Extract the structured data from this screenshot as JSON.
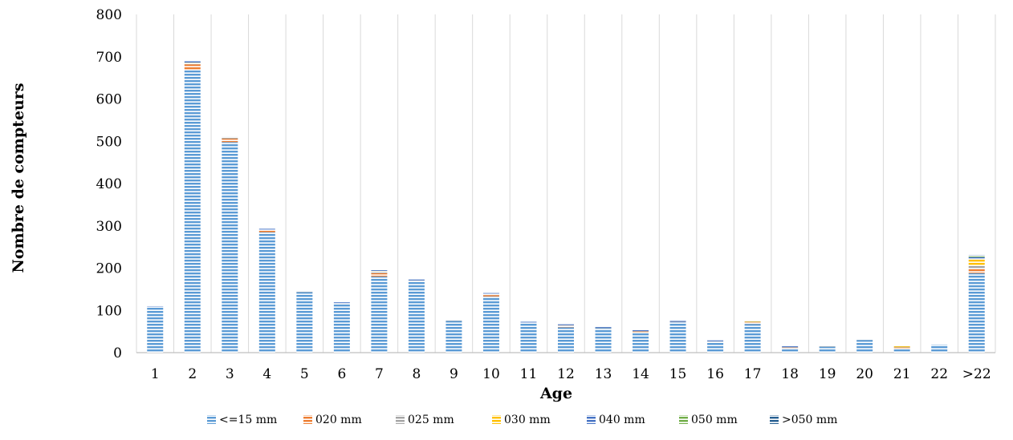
{
  "chart_data": {
    "type": "bar",
    "stacked": true,
    "title": "",
    "xlabel": "Age",
    "ylabel": "Nombre de compteurs",
    "ylim": [
      0,
      800
    ],
    "yticks": [
      0,
      100,
      200,
      300,
      400,
      500,
      600,
      700,
      800
    ],
    "grid": "vertical",
    "legend_position": "bottom",
    "categories": [
      "1",
      "2",
      "3",
      "4",
      "5",
      "6",
      "7",
      "8",
      "9",
      "10",
      "11",
      "12",
      "13",
      "14",
      "15",
      "16",
      "17",
      "18",
      "19",
      "20",
      "21",
      "22",
      ">22"
    ],
    "series": [
      {
        "name": "<=15 mm",
        "color": "#5B9BD5",
        "values": [
          108,
          670,
          498,
          285,
          143,
          116,
          180,
          170,
          75,
          133,
          70,
          60,
          58,
          47,
          72,
          26,
          68,
          11,
          14,
          30,
          10,
          19,
          188
        ]
      },
      {
        "name": "020 mm",
        "color": "#ED7D31",
        "values": [
          0,
          12,
          8,
          5,
          0,
          0,
          8,
          0,
          0,
          3,
          0,
          4,
          0,
          3,
          0,
          0,
          4,
          1,
          0,
          0,
          2,
          0,
          12
        ]
      },
      {
        "name": "025 mm",
        "color": "#A5A5A5",
        "values": [
          0,
          3,
          2,
          1,
          1,
          1,
          3,
          1,
          1,
          2,
          1,
          1,
          1,
          1,
          1,
          1,
          1,
          1,
          1,
          1,
          1,
          0,
          6
        ]
      },
      {
        "name": "030 mm",
        "color": "#FFC000",
        "values": [
          0,
          1,
          1,
          0,
          0,
          0,
          2,
          0,
          0,
          0,
          0,
          0,
          0,
          0,
          0,
          0,
          1,
          0,
          0,
          0,
          2,
          0,
          14
        ]
      },
      {
        "name": "040 mm",
        "color": "#4472C4",
        "values": [
          2,
          3,
          2,
          2,
          2,
          2,
          2,
          2,
          2,
          3,
          2,
          2,
          2,
          2,
          2,
          2,
          0,
          2,
          0,
          2,
          2,
          0,
          6
        ]
      },
      {
        "name": "050 mm",
        "color": "#70AD47",
        "values": [
          0,
          0,
          0,
          0,
          0,
          0,
          0,
          0,
          0,
          0,
          0,
          0,
          0,
          0,
          0,
          0,
          0,
          0,
          0,
          0,
          1,
          0,
          2
        ]
      },
      {
        "name": ">050 mm",
        "color": "#255E91",
        "values": [
          0,
          0,
          0,
          0,
          0,
          0,
          0,
          0,
          0,
          0,
          0,
          0,
          0,
          0,
          0,
          0,
          0,
          0,
          0,
          0,
          0,
          0,
          3
        ]
      }
    ]
  }
}
